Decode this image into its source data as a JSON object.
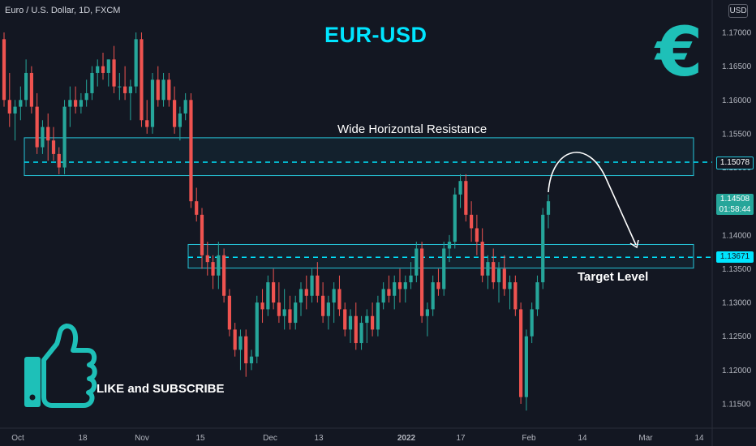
{
  "header": {
    "symbol_info": "Euro / U.S. Dollar, 1D, FXCM",
    "currency_button": "USD"
  },
  "annotations": {
    "title": "EUR-USD",
    "resistance_label": "Wide Horizontal Resistance",
    "target_label": "Target Level",
    "like_label": "LIKE and SUBSCRIBE",
    "euro_symbol": "€"
  },
  "price_tags": {
    "resistance_price": "1.15078",
    "target_price": "1.13671",
    "last_price": "1.14508",
    "countdown": "01:58:44"
  },
  "colors": {
    "background": "#131722",
    "bull": "#26a69a",
    "bear": "#ef5350",
    "zone": "#26c6da",
    "accent": "#00e5ff",
    "euro": "#1ec0b8"
  },
  "icons": [
    "euro-icon",
    "thumbs-up-icon",
    "curved-arrow-icon"
  ],
  "chart_data": {
    "type": "candlestick",
    "title": "EUR-USD",
    "ylim": [
      1.1125,
      1.172
    ],
    "y_ticks": [
      "1.17000",
      "1.16500",
      "1.16000",
      "1.15500",
      "1.15000",
      "1.14500",
      "1.14000",
      "1.13500",
      "1.13000",
      "1.12500",
      "1.12000",
      "1.11500"
    ],
    "y_tick_values": [
      1.17,
      1.165,
      1.16,
      1.155,
      1.15,
      1.145,
      1.14,
      1.135,
      1.13,
      1.125,
      1.12,
      1.115
    ],
    "x_ticks": [
      "Oct",
      "18",
      "Nov",
      "15",
      "Dec",
      "13",
      "2022",
      "17",
      "Feb",
      "14",
      "Mar",
      "14"
    ],
    "resistance_zone": [
      1.1488,
      1.1544
    ],
    "resistance_line": 1.15078,
    "support_zone": [
      1.1351,
      1.1386
    ],
    "target_level": 1.13671,
    "last_price": 1.14508,
    "candles": [
      [
        1.169,
        1.17,
        1.159,
        1.16
      ],
      [
        1.16,
        1.164,
        1.156,
        1.158
      ],
      [
        1.158,
        1.16,
        1.154,
        1.159
      ],
      [
        1.159,
        1.162,
        1.157,
        1.16
      ],
      [
        1.16,
        1.166,
        1.159,
        1.164
      ],
      [
        1.164,
        1.165,
        1.158,
        1.159
      ],
      [
        1.159,
        1.161,
        1.152,
        1.153
      ],
      [
        1.153,
        1.157,
        1.152,
        1.156
      ],
      [
        1.156,
        1.158,
        1.151,
        1.154
      ],
      [
        1.154,
        1.156,
        1.151,
        1.152
      ],
      [
        1.152,
        1.153,
        1.149,
        1.15
      ],
      [
        1.15,
        1.16,
        1.149,
        1.159
      ],
      [
        1.159,
        1.162,
        1.156,
        1.16
      ],
      [
        1.16,
        1.162,
        1.158,
        1.159
      ],
      [
        1.159,
        1.161,
        1.158,
        1.16
      ],
      [
        1.16,
        1.163,
        1.159,
        1.161
      ],
      [
        1.161,
        1.165,
        1.16,
        1.164
      ],
      [
        1.164,
        1.166,
        1.162,
        1.165
      ],
      [
        1.165,
        1.167,
        1.163,
        1.164
      ],
      [
        1.164,
        1.166,
        1.162,
        1.166
      ],
      [
        1.166,
        1.168,
        1.161,
        1.162
      ],
      [
        1.162,
        1.164,
        1.16,
        1.162
      ],
      [
        1.162,
        1.165,
        1.16,
        1.161
      ],
      [
        1.161,
        1.163,
        1.157,
        1.162
      ],
      [
        1.162,
        1.17,
        1.161,
        1.169
      ],
      [
        1.169,
        1.17,
        1.156,
        1.157
      ],
      [
        1.157,
        1.16,
        1.155,
        1.156
      ],
      [
        1.156,
        1.164,
        1.155,
        1.163
      ],
      [
        1.163,
        1.165,
        1.159,
        1.16
      ],
      [
        1.16,
        1.164,
        1.159,
        1.163
      ],
      [
        1.163,
        1.164,
        1.159,
        1.16
      ],
      [
        1.16,
        1.162,
        1.155,
        1.156
      ],
      [
        1.156,
        1.159,
        1.154,
        1.158
      ],
      [
        1.158,
        1.161,
        1.157,
        1.16
      ],
      [
        1.16,
        1.161,
        1.144,
        1.145
      ],
      [
        1.145,
        1.147,
        1.142,
        1.143
      ],
      [
        1.143,
        1.144,
        1.135,
        1.137
      ],
      [
        1.137,
        1.139,
        1.134,
        1.136
      ],
      [
        1.136,
        1.137,
        1.132,
        1.134
      ],
      [
        1.134,
        1.139,
        1.132,
        1.137
      ],
      [
        1.137,
        1.138,
        1.13,
        1.131
      ],
      [
        1.131,
        1.132,
        1.125,
        1.126
      ],
      [
        1.126,
        1.127,
        1.122,
        1.123
      ],
      [
        1.123,
        1.126,
        1.12,
        1.125
      ],
      [
        1.125,
        1.126,
        1.119,
        1.121
      ],
      [
        1.121,
        1.123,
        1.12,
        1.122
      ],
      [
        1.122,
        1.131,
        1.121,
        1.13
      ],
      [
        1.13,
        1.132,
        1.127,
        1.129
      ],
      [
        1.129,
        1.134,
        1.128,
        1.133
      ],
      [
        1.133,
        1.135,
        1.129,
        1.13
      ],
      [
        1.13,
        1.133,
        1.127,
        1.128
      ],
      [
        1.128,
        1.132,
        1.126,
        1.129
      ],
      [
        1.129,
        1.131,
        1.126,
        1.127
      ],
      [
        1.127,
        1.131,
        1.126,
        1.13
      ],
      [
        1.13,
        1.133,
        1.128,
        1.132
      ],
      [
        1.132,
        1.134,
        1.129,
        1.131
      ],
      [
        1.131,
        1.135,
        1.13,
        1.134
      ],
      [
        1.134,
        1.136,
        1.13,
        1.131
      ],
      [
        1.131,
        1.133,
        1.127,
        1.128
      ],
      [
        1.128,
        1.131,
        1.126,
        1.13
      ],
      [
        1.13,
        1.133,
        1.127,
        1.132
      ],
      [
        1.132,
        1.134,
        1.128,
        1.129
      ],
      [
        1.129,
        1.13,
        1.125,
        1.126
      ],
      [
        1.126,
        1.129,
        1.124,
        1.128
      ],
      [
        1.128,
        1.13,
        1.123,
        1.124
      ],
      [
        1.124,
        1.128,
        1.123,
        1.127
      ],
      [
        1.127,
        1.129,
        1.124,
        1.128
      ],
      [
        1.128,
        1.13,
        1.125,
        1.126
      ],
      [
        1.126,
        1.131,
        1.125,
        1.13
      ],
      [
        1.13,
        1.133,
        1.129,
        1.132
      ],
      [
        1.132,
        1.134,
        1.13,
        1.131
      ],
      [
        1.131,
        1.134,
        1.129,
        1.133
      ],
      [
        1.133,
        1.135,
        1.13,
        1.132
      ],
      [
        1.132,
        1.134,
        1.13,
        1.133
      ],
      [
        1.133,
        1.136,
        1.132,
        1.134
      ],
      [
        1.134,
        1.139,
        1.133,
        1.138
      ],
      [
        1.138,
        1.139,
        1.127,
        1.128
      ],
      [
        1.128,
        1.13,
        1.125,
        1.129
      ],
      [
        1.129,
        1.134,
        1.128,
        1.133
      ],
      [
        1.133,
        1.135,
        1.131,
        1.132
      ],
      [
        1.132,
        1.139,
        1.131,
        1.138
      ],
      [
        1.138,
        1.14,
        1.136,
        1.139
      ],
      [
        1.139,
        1.147,
        1.138,
        1.146
      ],
      [
        1.146,
        1.149,
        1.144,
        1.148
      ],
      [
        1.148,
        1.149,
        1.142,
        1.143
      ],
      [
        1.143,
        1.145,
        1.139,
        1.141
      ],
      [
        1.141,
        1.143,
        1.137,
        1.139
      ],
      [
        1.139,
        1.141,
        1.133,
        1.134
      ],
      [
        1.134,
        1.137,
        1.132,
        1.136
      ],
      [
        1.136,
        1.138,
        1.132,
        1.133
      ],
      [
        1.133,
        1.136,
        1.13,
        1.135
      ],
      [
        1.135,
        1.137,
        1.131,
        1.132
      ],
      [
        1.132,
        1.134,
        1.129,
        1.133
      ],
      [
        1.133,
        1.134,
        1.128,
        1.129
      ],
      [
        1.129,
        1.13,
        1.115,
        1.116
      ],
      [
        1.116,
        1.126,
        1.114,
        1.125
      ],
      [
        1.125,
        1.13,
        1.124,
        1.129
      ],
      [
        1.129,
        1.134,
        1.128,
        1.133
      ],
      [
        1.133,
        1.144,
        1.132,
        1.143
      ],
      [
        1.143,
        1.146,
        1.141,
        1.145
      ]
    ]
  }
}
